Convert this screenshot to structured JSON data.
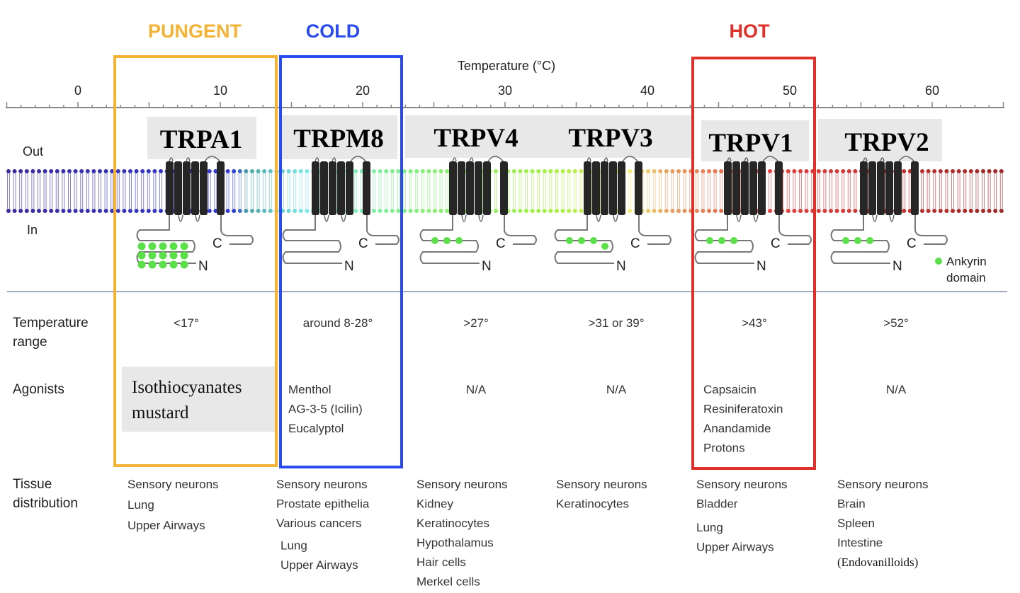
{
  "categories": [
    {
      "label": "PUNGENT",
      "color": "#F5B335"
    },
    {
      "label": "COLD",
      "color": "#2A4BEF"
    },
    {
      "label": "HOT",
      "color": "#E0302A"
    }
  ],
  "axis": {
    "title": "Temperature (°C)",
    "ticks": [
      "0",
      "10",
      "20",
      "30",
      "40",
      "50",
      "60"
    ]
  },
  "membrane": {
    "out_label": "Out",
    "in_label": "In"
  },
  "terminal_labels": {
    "c": "C",
    "n": "N"
  },
  "legend": {
    "line1": "Ankyrin",
    "line2": "domain",
    "color": "#5BE04A"
  },
  "row_labels": {
    "temperature_1": "Temperature",
    "temperature_2": "range",
    "agonists": "Agonists",
    "tissue_1": "Tissue",
    "tissue_2": "distribution"
  },
  "channels": [
    {
      "name": "TRPA1",
      "temperature_range": "<17°",
      "agonists": [
        "Isothiocyanates",
        "mustard"
      ],
      "tissues": [
        "Sensory neurons",
        "Lung",
        "Upper Airways"
      ]
    },
    {
      "name": "TRPM8",
      "temperature_range": "around 8-28°",
      "agonists": [
        "Menthol",
        "AG-3-5 (Icilin)",
        "Eucalyptol"
      ],
      "tissues": [
        "Sensory neurons",
        "Prostate epithelia",
        "Various cancers",
        "Lung",
        "Upper Airways"
      ]
    },
    {
      "name": "TRPV4",
      "temperature_range": ">27°",
      "agonists": [
        "N/A"
      ],
      "tissues": [
        "Sensory neurons",
        "Kidney",
        "Keratinocytes",
        "Hypothalamus",
        "Hair cells",
        "Merkel cells"
      ]
    },
    {
      "name": "TRPV3",
      "temperature_range": ">31 or 39°",
      "agonists": [
        "N/A"
      ],
      "tissues": [
        "Sensory neurons",
        "Keratinocytes"
      ]
    },
    {
      "name": "TRPV1",
      "temperature_range": ">43°",
      "agonists": [
        "Capsaicin",
        "Resiniferatoxin",
        "Anandamide",
        "Protons"
      ],
      "tissues": [
        "Sensory neurons",
        "Bladder",
        "Lung",
        "Upper Airways"
      ]
    },
    {
      "name": "TRPV2",
      "temperature_range": ">52°",
      "agonists": [
        "N/A"
      ],
      "tissues": [
        "Sensory neurons",
        "Brain",
        "Spleen",
        "Intestine",
        "(Endovanilloids)"
      ]
    }
  ]
}
